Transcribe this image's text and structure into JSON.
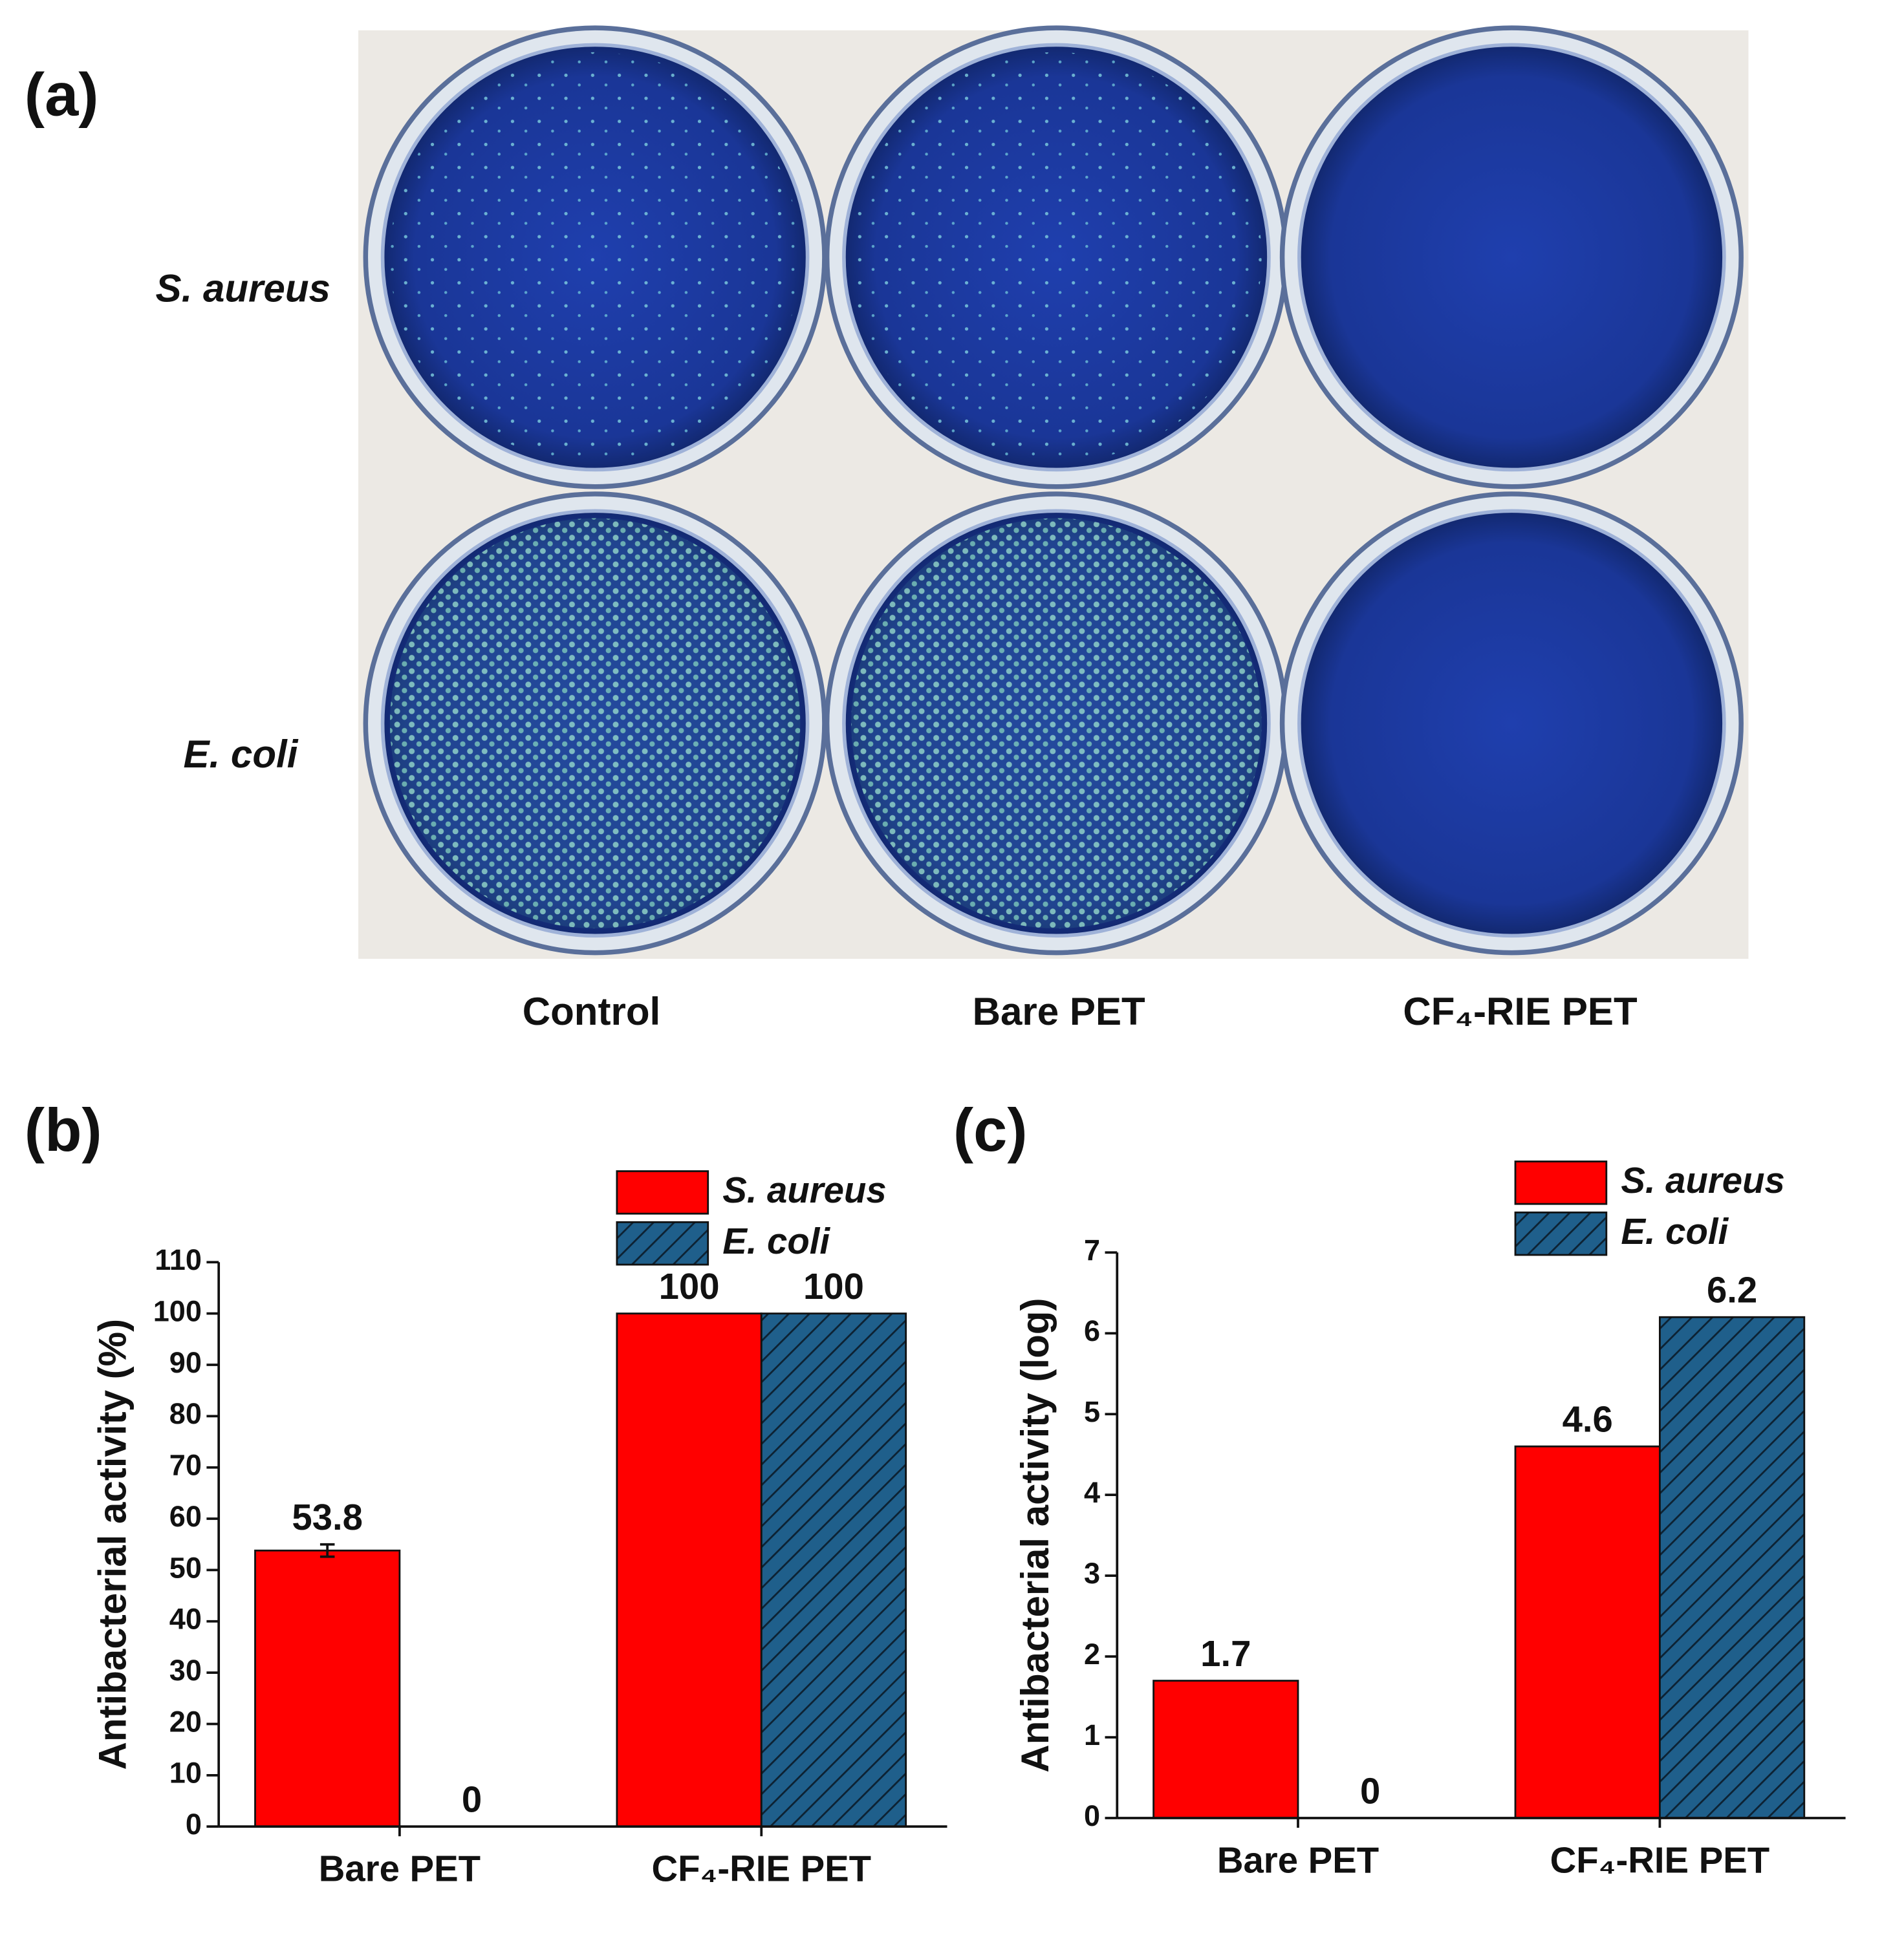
{
  "figure_a": {
    "label": "(a)",
    "rows": [
      "S. aureus",
      "E. coli"
    ],
    "columns": [
      "Control",
      "Bare PET",
      "CF₄-RIE PET"
    ]
  },
  "chart_data": [
    {
      "type": "bar",
      "label": "(b)",
      "y_label": "Antibacterial activity (%)",
      "categories": [
        "Bare PET",
        "CF₄-RIE PET"
      ],
      "series": [
        {
          "name": "S. aureus",
          "color": "#ff0000",
          "values": [
            53.8,
            100
          ],
          "errors": [
            1.2,
            null
          ]
        },
        {
          "name": "E. coli",
          "color": "#1f5f8b",
          "hatch": true,
          "values": [
            0,
            100
          ]
        }
      ],
      "ylim": [
        0,
        110
      ],
      "yticks": [
        0,
        10,
        20,
        30,
        40,
        50,
        60,
        70,
        80,
        90,
        100,
        110
      ],
      "legend": "top-right"
    },
    {
      "type": "bar",
      "label": "(c)",
      "y_label": "Antibacterial activity (log)",
      "categories": [
        "Bare PET",
        "CF₄-RIE PET"
      ],
      "series": [
        {
          "name": "S. aureus",
          "color": "#ff0000",
          "values": [
            1.7,
            4.6
          ]
        },
        {
          "name": "E. coli",
          "color": "#1f5f8b",
          "hatch": true,
          "values": [
            0,
            6.2
          ]
        }
      ],
      "ylim": [
        0,
        7
      ],
      "yticks": [
        0,
        1,
        2,
        3,
        4,
        5,
        6,
        7
      ],
      "legend": "top-right"
    }
  ]
}
